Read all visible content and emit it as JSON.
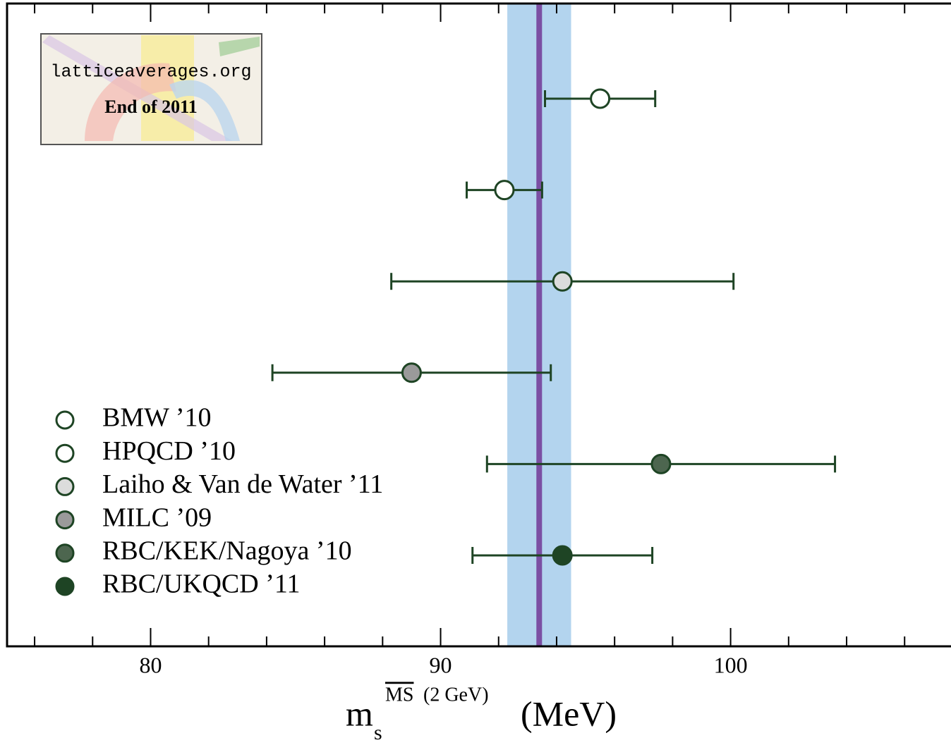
{
  "chart_data": {
    "type": "errorbar",
    "annotations": [
      "latticeaverages.org",
      "End of 2011"
    ],
    "x_label": {
      "base": "m",
      "subscript": "s",
      "superscript_overline": "MS",
      "superscript": "(2 GeV)",
      "unit": "(MeV)"
    },
    "xlim": [
      75.05,
      107.6
    ],
    "xticks": [
      80,
      90,
      100
    ],
    "xminorticks": [
      76,
      78,
      82,
      84,
      86,
      88,
      92,
      94,
      96,
      98,
      102,
      104,
      106
    ],
    "average": {
      "value": 93.4,
      "error": 1.1,
      "band_color": "#b3d4ee",
      "line_color": "#7b4fa3"
    },
    "edge_color": "#1e4424",
    "series": [
      {
        "name": "BMW ’10",
        "color": "#ffffff",
        "values": [
          95.5
        ],
        "errors": [
          1.9
        ]
      },
      {
        "name": "HPQCD ’10",
        "color": "#ffffff",
        "values": [
          92.2
        ],
        "errors": [
          1.3
        ]
      },
      {
        "name": "Laiho & Van de Water ’11",
        "color": "#dcdcdc",
        "values": [
          94.2
        ],
        "errors": [
          5.9
        ]
      },
      {
        "name": "MILC ’09",
        "color": "#9a9a9a",
        "values": [
          89.0
        ],
        "errors": [
          4.8
        ]
      },
      {
        "name": "RBC/KEK/Nagoya ’10",
        "color": "#4d664f",
        "values": [
          97.6
        ],
        "errors": [
          6.0
        ]
      },
      {
        "name": "RBC/UKQCD ’11",
        "color": "#1e4424",
        "values": [
          94.2
        ],
        "errors": [
          3.1
        ]
      }
    ]
  }
}
